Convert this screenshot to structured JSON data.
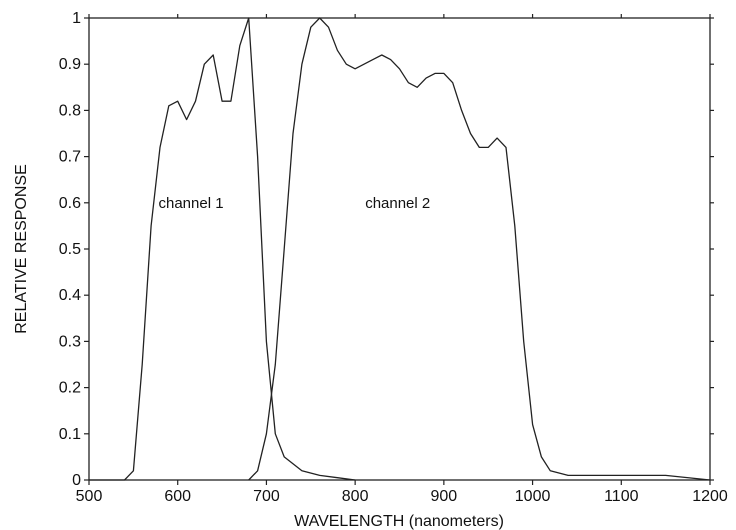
{
  "chart_data": {
    "type": "line",
    "title": "",
    "xlabel": "WAVELENGTH (nanometers)",
    "ylabel": "RELATIVE RESPONSE",
    "xlim": [
      500,
      1200
    ],
    "ylim": [
      0,
      1
    ],
    "xticks": [
      500,
      600,
      700,
      800,
      900,
      1000,
      1100,
      1200
    ],
    "yticks": [
      0,
      0.1,
      0.2,
      0.3,
      0.4,
      0.5,
      0.6,
      0.7,
      0.8,
      0.9,
      1
    ],
    "ytick_labels": [
      "0",
      "0.1",
      "0.2",
      "0.3",
      "0.4",
      "0.5",
      "0.6",
      "0.7",
      "0.8",
      "0.9",
      "1"
    ],
    "grid": false,
    "legend": "none",
    "series": [
      {
        "name": "channel 1",
        "x": [
          500,
          540,
          550,
          560,
          570,
          580,
          590,
          600,
          610,
          620,
          630,
          640,
          650,
          660,
          670,
          680,
          690,
          700,
          710,
          720,
          740,
          760,
          780,
          800
        ],
        "y": [
          0.0,
          0.0,
          0.02,
          0.25,
          0.55,
          0.72,
          0.81,
          0.82,
          0.78,
          0.82,
          0.9,
          0.92,
          0.82,
          0.82,
          0.94,
          1.0,
          0.7,
          0.3,
          0.1,
          0.05,
          0.02,
          0.01,
          0.005,
          0.0
        ]
      },
      {
        "name": "channel 2",
        "x": [
          680,
          690,
          700,
          710,
          720,
          730,
          740,
          750,
          760,
          770,
          780,
          790,
          800,
          810,
          820,
          830,
          840,
          850,
          860,
          870,
          880,
          890,
          900,
          910,
          920,
          930,
          940,
          950,
          960,
          970,
          980,
          990,
          1000,
          1010,
          1020,
          1040,
          1060,
          1100,
          1150,
          1200
        ],
        "y": [
          0.0,
          0.02,
          0.1,
          0.25,
          0.5,
          0.75,
          0.9,
          0.98,
          1.0,
          0.98,
          0.93,
          0.9,
          0.89,
          0.9,
          0.91,
          0.92,
          0.91,
          0.89,
          0.86,
          0.85,
          0.87,
          0.88,
          0.88,
          0.86,
          0.8,
          0.75,
          0.72,
          0.72,
          0.74,
          0.72,
          0.55,
          0.3,
          0.12,
          0.05,
          0.02,
          0.01,
          0.01,
          0.01,
          0.01,
          0.0
        ]
      }
    ],
    "annotations": [
      {
        "text": "channel 1",
        "x": 615,
        "y": 0.6
      },
      {
        "text": "channel 2",
        "x": 848,
        "y": 0.6
      }
    ]
  }
}
